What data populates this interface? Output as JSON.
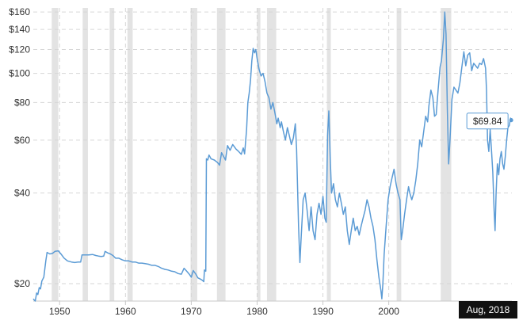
{
  "chart_data": {
    "type": "line",
    "title": "",
    "xlabel": "",
    "ylabel": "",
    "y_scale": "log",
    "x_range": [
      1946,
      2018.7
    ],
    "ylim": [
      17.5,
      165
    ],
    "grid": {
      "horizontal": true,
      "vertical": true,
      "style": "dashed"
    },
    "y_ticks": [
      {
        "value": 20,
        "label": "$20"
      },
      {
        "value": 40,
        "label": "$40"
      },
      {
        "value": 60,
        "label": "$60"
      },
      {
        "value": 80,
        "label": "$80"
      },
      {
        "value": 100,
        "label": "$100"
      },
      {
        "value": 120,
        "label": "$120"
      },
      {
        "value": 140,
        "label": "$140"
      },
      {
        "value": 160,
        "label": "$160"
      }
    ],
    "x_ticks": [
      {
        "value": 1950,
        "label": "1950"
      },
      {
        "value": 1960,
        "label": "1960"
      },
      {
        "value": 1970,
        "label": "1970"
      },
      {
        "value": 1980,
        "label": "1980"
      },
      {
        "value": 1990,
        "label": "1990"
      },
      {
        "value": 2000,
        "label": "2000"
      }
    ],
    "cursor_label": "Aug, 2018",
    "tooltip": {
      "x": 2018.6,
      "y": 69.84,
      "label": "$69.84"
    },
    "recessions": [
      {
        "start": 1948.8,
        "end": 1949.8
      },
      {
        "start": 1953.5,
        "end": 1954.3
      },
      {
        "start": 1957.6,
        "end": 1958.3
      },
      {
        "start": 1960.3,
        "end": 1961.1
      },
      {
        "start": 1969.9,
        "end": 1970.9
      },
      {
        "start": 1973.9,
        "end": 1975.2
      },
      {
        "start": 1980.0,
        "end": 1980.5
      },
      {
        "start": 1981.5,
        "end": 1982.9
      },
      {
        "start": 1990.6,
        "end": 1991.2
      },
      {
        "start": 2001.2,
        "end": 2001.9
      },
      {
        "start": 2007.9,
        "end": 2009.5
      }
    ],
    "series": [
      {
        "color": "#5b9bd5",
        "points": [
          [
            1946.0,
            17.8
          ],
          [
            1946.3,
            17.5
          ],
          [
            1946.5,
            18.6
          ],
          [
            1946.7,
            18.4
          ],
          [
            1946.9,
            19.4
          ],
          [
            1947.1,
            19.2
          ],
          [
            1947.3,
            20.4
          ],
          [
            1947.6,
            21.0
          ],
          [
            1947.9,
            23.8
          ],
          [
            1948.1,
            25.4
          ],
          [
            1948.5,
            25.1
          ],
          [
            1948.9,
            25.2
          ],
          [
            1949.3,
            25.6
          ],
          [
            1949.8,
            25.7
          ],
          [
            1950.2,
            25.1
          ],
          [
            1950.7,
            24.3
          ],
          [
            1951.2,
            23.8
          ],
          [
            1951.8,
            23.6
          ],
          [
            1952.3,
            23.5
          ],
          [
            1952.8,
            23.6
          ],
          [
            1953.2,
            23.6
          ],
          [
            1953.4,
            24.9
          ],
          [
            1953.9,
            24.9
          ],
          [
            1954.4,
            24.9
          ],
          [
            1955.0,
            25.0
          ],
          [
            1955.5,
            24.8
          ],
          [
            1955.9,
            24.7
          ],
          [
            1956.3,
            24.6
          ],
          [
            1956.7,
            24.7
          ],
          [
            1956.9,
            25.6
          ],
          [
            1957.3,
            25.3
          ],
          [
            1957.7,
            25.1
          ],
          [
            1958.1,
            24.8
          ],
          [
            1958.5,
            24.3
          ],
          [
            1959.0,
            24.3
          ],
          [
            1959.5,
            24.0
          ],
          [
            1960.0,
            23.8
          ],
          [
            1960.5,
            23.8
          ],
          [
            1961.0,
            23.6
          ],
          [
            1961.5,
            23.6
          ],
          [
            1962.0,
            23.4
          ],
          [
            1962.5,
            23.4
          ],
          [
            1963.0,
            23.3
          ],
          [
            1963.5,
            23.2
          ],
          [
            1964.0,
            23.0
          ],
          [
            1964.5,
            23.0
          ],
          [
            1965.0,
            22.8
          ],
          [
            1965.5,
            22.5
          ],
          [
            1966.0,
            22.3
          ],
          [
            1966.5,
            22.2
          ],
          [
            1967.0,
            22.0
          ],
          [
            1967.5,
            21.9
          ],
          [
            1968.0,
            21.6
          ],
          [
            1968.5,
            21.5
          ],
          [
            1968.9,
            22.5
          ],
          [
            1969.3,
            22.0
          ],
          [
            1969.7,
            21.5
          ],
          [
            1970.0,
            21.0
          ],
          [
            1970.3,
            22.1
          ],
          [
            1970.7,
            21.5
          ],
          [
            1971.0,
            20.9
          ],
          [
            1971.4,
            20.7
          ],
          [
            1971.7,
            20.5
          ],
          [
            1971.9,
            20.3
          ],
          [
            1972.0,
            22.2
          ],
          [
            1972.2,
            22.0
          ],
          [
            1972.3,
            52.0
          ],
          [
            1972.5,
            51.5
          ],
          [
            1972.7,
            53.5
          ],
          [
            1973.0,
            52.0
          ],
          [
            1973.5,
            51.5
          ],
          [
            1974.0,
            50.5
          ],
          [
            1974.3,
            49.5
          ],
          [
            1974.6,
            54.5
          ],
          [
            1974.9,
            53.0
          ],
          [
            1975.2,
            51.5
          ],
          [
            1975.5,
            57.5
          ],
          [
            1975.9,
            55.5
          ],
          [
            1976.3,
            58.0
          ],
          [
            1976.8,
            56.0
          ],
          [
            1977.2,
            55.0
          ],
          [
            1977.6,
            53.8
          ],
          [
            1977.9,
            56.5
          ],
          [
            1978.1,
            54.0
          ],
          [
            1978.4,
            65.0
          ],
          [
            1978.6,
            80.0
          ],
          [
            1978.8,
            86.0
          ],
          [
            1979.0,
            95.0
          ],
          [
            1979.2,
            110.0
          ],
          [
            1979.4,
            121.0
          ],
          [
            1979.6,
            117.0
          ],
          [
            1979.8,
            120.0
          ],
          [
            1980.0,
            112.0
          ],
          [
            1980.3,
            103.0
          ],
          [
            1980.6,
            98.0
          ],
          [
            1980.9,
            100.0
          ],
          [
            1981.2,
            94.0
          ],
          [
            1981.5,
            86.0
          ],
          [
            1981.8,
            83.0
          ],
          [
            1982.1,
            76.0
          ],
          [
            1982.4,
            80.0
          ],
          [
            1982.7,
            74.0
          ],
          [
            1983.0,
            68.0
          ],
          [
            1983.2,
            71.0
          ],
          [
            1983.5,
            66.0
          ],
          [
            1983.7,
            69.0
          ],
          [
            1984.0,
            64.0
          ],
          [
            1984.3,
            60.0
          ],
          [
            1984.6,
            66.0
          ],
          [
            1984.9,
            62.0
          ],
          [
            1985.2,
            58.0
          ],
          [
            1985.5,
            61.0
          ],
          [
            1985.8,
            68.0
          ],
          [
            1986.0,
            56.0
          ],
          [
            1986.3,
            31.0
          ],
          [
            1986.5,
            23.5
          ],
          [
            1986.7,
            28.5
          ],
          [
            1987.0,
            38.0
          ],
          [
            1987.3,
            40.0
          ],
          [
            1987.6,
            35.0
          ],
          [
            1987.9,
            30.0
          ],
          [
            1988.2,
            36.0
          ],
          [
            1988.5,
            30.0
          ],
          [
            1988.8,
            28.0
          ],
          [
            1989.1,
            34.0
          ],
          [
            1989.4,
            37.0
          ],
          [
            1989.7,
            34.0
          ],
          [
            1990.0,
            39.0
          ],
          [
            1990.3,
            33.0
          ],
          [
            1990.5,
            32.0
          ],
          [
            1990.7,
            62.0
          ],
          [
            1990.9,
            75.0
          ],
          [
            1991.1,
            53.0
          ],
          [
            1991.3,
            40.0
          ],
          [
            1991.6,
            43.0
          ],
          [
            1991.9,
            38.0
          ],
          [
            1992.2,
            36.0
          ],
          [
            1992.5,
            40.0
          ],
          [
            1992.8,
            37.0
          ],
          [
            1993.1,
            34.0
          ],
          [
            1993.4,
            36.0
          ],
          [
            1993.7,
            30.0
          ],
          [
            1994.0,
            27.0
          ],
          [
            1994.3,
            30.0
          ],
          [
            1994.6,
            33.0
          ],
          [
            1994.9,
            30.0
          ],
          [
            1995.2,
            31.0
          ],
          [
            1995.5,
            29.0
          ],
          [
            1995.8,
            31.0
          ],
          [
            1996.1,
            33.0
          ],
          [
            1996.4,
            35.0
          ],
          [
            1996.7,
            38.0
          ],
          [
            1997.0,
            36.0
          ],
          [
            1997.3,
            33.0
          ],
          [
            1997.6,
            31.0
          ],
          [
            1997.9,
            28.0
          ],
          [
            1998.2,
            24.0
          ],
          [
            1998.5,
            21.0
          ],
          [
            1998.8,
            19.0
          ],
          [
            1998.95,
            17.8
          ],
          [
            1999.1,
            20.0
          ],
          [
            1999.3,
            25.0
          ],
          [
            1999.6,
            31.0
          ],
          [
            1999.9,
            38.0
          ],
          [
            2000.2,
            42.0
          ],
          [
            2000.5,
            45.0
          ],
          [
            2000.8,
            48.0
          ],
          [
            2001.1,
            43.0
          ],
          [
            2001.4,
            40.0
          ],
          [
            2001.7,
            38.0
          ],
          [
            2001.9,
            28.0
          ],
          [
            2002.1,
            30.0
          ],
          [
            2002.4,
            34.0
          ],
          [
            2002.7,
            38.0
          ],
          [
            2003.0,
            42.0
          ],
          [
            2003.2,
            40.0
          ],
          [
            2003.5,
            38.0
          ],
          [
            2003.8,
            40.0
          ],
          [
            2004.1,
            44.0
          ],
          [
            2004.4,
            50.0
          ],
          [
            2004.7,
            60.0
          ],
          [
            2005.0,
            57.0
          ],
          [
            2005.3,
            64.0
          ],
          [
            2005.6,
            72.0
          ],
          [
            2005.9,
            69.0
          ],
          [
            2006.1,
            78.0
          ],
          [
            2006.4,
            88.0
          ],
          [
            2006.7,
            83.0
          ],
          [
            2006.95,
            72.0
          ],
          [
            2007.2,
            73.0
          ],
          [
            2007.5,
            88.0
          ],
          [
            2007.8,
            105.0
          ],
          [
            2008.0,
            110.0
          ],
          [
            2008.3,
            130.0
          ],
          [
            2008.5,
            160.0
          ],
          [
            2008.7,
            135.0
          ],
          [
            2008.9,
            75.0
          ],
          [
            2009.1,
            50.0
          ],
          [
            2009.3,
            60.0
          ],
          [
            2009.6,
            82.0
          ],
          [
            2009.9,
            90.0
          ],
          [
            2010.2,
            88.0
          ],
          [
            2010.5,
            86.0
          ],
          [
            2010.8,
            93.0
          ],
          [
            2011.1,
            105.0
          ],
          [
            2011.4,
            118.0
          ],
          [
            2011.7,
            106.0
          ],
          [
            2012.0,
            115.0
          ],
          [
            2012.3,
            117.0
          ],
          [
            2012.6,
            102.0
          ],
          [
            2012.9,
            108.0
          ],
          [
            2013.2,
            106.0
          ],
          [
            2013.5,
            104.0
          ],
          [
            2013.8,
            108.0
          ],
          [
            2014.1,
            107.0
          ],
          [
            2014.4,
            112.0
          ],
          [
            2014.7,
            104.0
          ],
          [
            2014.85,
            88.0
          ],
          [
            2015.0,
            60.0
          ],
          [
            2015.2,
            55.0
          ],
          [
            2015.4,
            65.0
          ],
          [
            2015.6,
            56.0
          ],
          [
            2015.8,
            47.0
          ],
          [
            2016.0,
            35.0
          ],
          [
            2016.15,
            30.0
          ],
          [
            2016.3,
            40.0
          ],
          [
            2016.5,
            50.0
          ],
          [
            2016.7,
            46.0
          ],
          [
            2016.9,
            52.0
          ],
          [
            2017.1,
            55.0
          ],
          [
            2017.3,
            50.0
          ],
          [
            2017.5,
            48.0
          ],
          [
            2017.7,
            53.0
          ],
          [
            2017.9,
            60.0
          ],
          [
            2018.1,
            66.0
          ],
          [
            2018.3,
            67.0
          ],
          [
            2018.5,
            71.0
          ],
          [
            2018.6,
            69.84
          ],
          [
            2018.7,
            71.0
          ]
        ]
      }
    ]
  }
}
